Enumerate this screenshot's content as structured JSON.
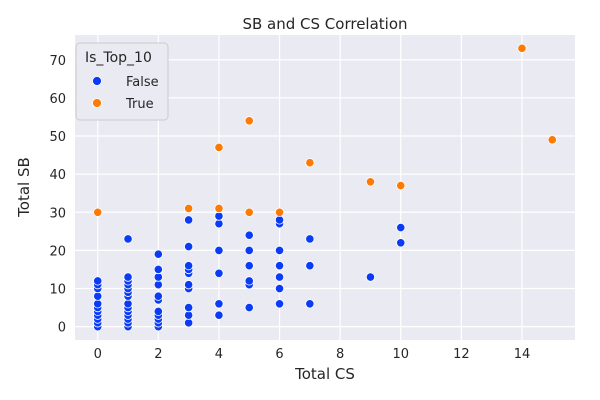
{
  "chart_data": {
    "type": "scatter",
    "title": "SB and CS Correlation",
    "xlabel": "Total CS",
    "ylabel": "Total SB",
    "xlim": [
      -0.75,
      15.75
    ],
    "ylim": [
      -3.5,
      76.5
    ],
    "xticks": [
      0,
      2,
      4,
      6,
      8,
      10,
      12,
      14
    ],
    "yticks": [
      0,
      10,
      20,
      30,
      40,
      50,
      60,
      70
    ],
    "grid": true,
    "legend": {
      "title": "Is_Top_10",
      "placement": "top-left"
    },
    "series": [
      {
        "name": "False",
        "color": "#0a3cf5",
        "points": [
          [
            0,
            0
          ],
          [
            0,
            1
          ],
          [
            0,
            2
          ],
          [
            0,
            3
          ],
          [
            0,
            4
          ],
          [
            0,
            5
          ],
          [
            0,
            6
          ],
          [
            0,
            8
          ],
          [
            0,
            10
          ],
          [
            0,
            11
          ],
          [
            0,
            12
          ],
          [
            1,
            0
          ],
          [
            1,
            1
          ],
          [
            1,
            2
          ],
          [
            1,
            3
          ],
          [
            1,
            4
          ],
          [
            1,
            5
          ],
          [
            1,
            6
          ],
          [
            1,
            8
          ],
          [
            1,
            9
          ],
          [
            1,
            10
          ],
          [
            1,
            11
          ],
          [
            1,
            12
          ],
          [
            1,
            13
          ],
          [
            1,
            23
          ],
          [
            2,
            0
          ],
          [
            2,
            1
          ],
          [
            2,
            2
          ],
          [
            2,
            3
          ],
          [
            2,
            4
          ],
          [
            2,
            7
          ],
          [
            2,
            8
          ],
          [
            2,
            11
          ],
          [
            2,
            13
          ],
          [
            2,
            15
          ],
          [
            2,
            19
          ],
          [
            3,
            1
          ],
          [
            3,
            3
          ],
          [
            3,
            5
          ],
          [
            3,
            10
          ],
          [
            3,
            11
          ],
          [
            3,
            14
          ],
          [
            3,
            15
          ],
          [
            3,
            16
          ],
          [
            3,
            21
          ],
          [
            3,
            28
          ],
          [
            4,
            3
          ],
          [
            4,
            6
          ],
          [
            4,
            14
          ],
          [
            4,
            20
          ],
          [
            4,
            27
          ],
          [
            4,
            29
          ],
          [
            5,
            5
          ],
          [
            5,
            11
          ],
          [
            5,
            12
          ],
          [
            5,
            16
          ],
          [
            5,
            20
          ],
          [
            5,
            24
          ],
          [
            6,
            6
          ],
          [
            6,
            10
          ],
          [
            6,
            13
          ],
          [
            6,
            16
          ],
          [
            6,
            20
          ],
          [
            6,
            27
          ],
          [
            6,
            28
          ],
          [
            7,
            6
          ],
          [
            7,
            16
          ],
          [
            7,
            23
          ],
          [
            9,
            13
          ],
          [
            10,
            22
          ],
          [
            10,
            26
          ]
        ]
      },
      {
        "name": "True",
        "color": "#fd7a03",
        "points": [
          [
            0,
            30
          ],
          [
            3,
            31
          ],
          [
            4,
            31
          ],
          [
            4,
            47
          ],
          [
            5,
            30
          ],
          [
            5,
            54
          ],
          [
            6,
            30
          ],
          [
            7,
            43
          ],
          [
            9,
            38
          ],
          [
            10,
            37
          ],
          [
            14,
            73
          ],
          [
            15,
            49
          ]
        ]
      }
    ]
  }
}
